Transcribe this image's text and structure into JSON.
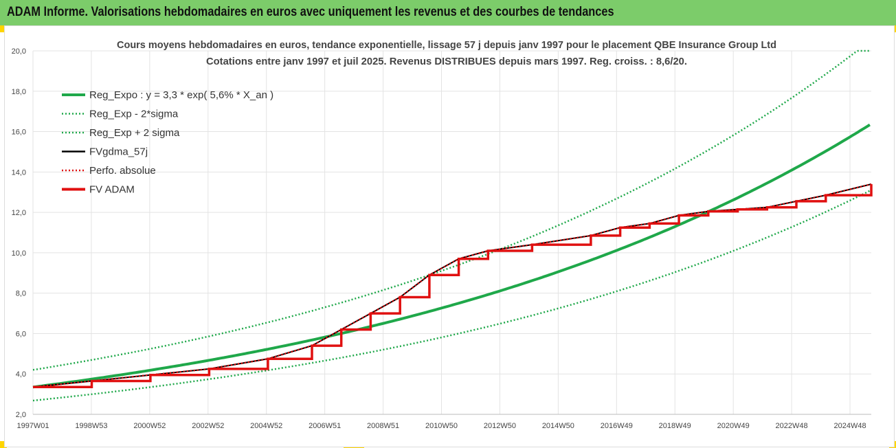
{
  "header": {
    "title": "ADAM Informe. Valorisations hebdomadaires en euros avec uniquement les revenus et des courbes de tendances"
  },
  "colors": {
    "header_bg": "#7ccc6a",
    "trend": "#1fa84a",
    "fvgdma": "#000000",
    "adam": "#e01010",
    "grid": "#e3e3e3"
  },
  "chart_data": {
    "type": "line",
    "title_line1": "Cours moyens hebdomadaires en euros, tendance exponentielle, lissage 57 j depuis janv 1997  pour le placement QBE Insurance Group Ltd",
    "title_line2": "Cotations entre janv 1997 et juil 2025. Revenus DISTRIBUES depuis mars 1997. Reg. croiss. : 8,6/20.",
    "xlabel": "",
    "ylabel": "",
    "x_tick_labels": [
      "1997W01",
      "1998W53",
      "2000W52",
      "2002W52",
      "2004W52",
      "2006W51",
      "2008W51",
      "2010W50",
      "2012W50",
      "2014W50",
      "2016W49",
      "2018W49",
      "2020W49",
      "2022W48",
      "2024W48"
    ],
    "x_range_years": [
      1997.0,
      2025.55
    ],
    "ylim": [
      2.0,
      20.0
    ],
    "y_tick_labels": [
      "2,0",
      "4,0",
      "6,0",
      "8,0",
      "10,0",
      "12,0",
      "14,0",
      "16,0",
      "18,0",
      "20,0"
    ],
    "grid": true,
    "legend_position": "top-left",
    "series": [
      {
        "name": "Reg_Expo : y = 3,3 * exp( 5,6% *  X_an )",
        "style": "solid-thick",
        "color": "#1fa84a",
        "model": {
          "a": 3.35,
          "b": 0.0556
        }
      },
      {
        "name": "Reg_Exp - 2*sigma",
        "style": "dotted",
        "color": "#1fa84a",
        "model": {
          "a": 2.68,
          "b": 0.0556
        }
      },
      {
        "name": "Reg_Exp + 2 sigma",
        "style": "dotted",
        "color": "#1fa84a",
        "model": {
          "a": 4.2,
          "b": 0.0556
        }
      },
      {
        "name": "FVgdma_57j",
        "style": "solid",
        "color": "#000000",
        "x": [
          1997.0,
          1999.0,
          2001.0,
          2003.0,
          2005.0,
          2006.5,
          2007.5,
          2008.5,
          2009.5,
          2010.5,
          2011.5,
          2012.5,
          2014.0,
          2016.0,
          2017.0,
          2018.0,
          2019.0,
          2020.0,
          2021.0,
          2022.0,
          2023.0,
          2024.0,
          2025.55
        ],
        "y": [
          3.35,
          3.65,
          3.95,
          4.25,
          4.75,
          5.4,
          6.2,
          7.0,
          7.8,
          8.9,
          9.7,
          10.1,
          10.4,
          10.85,
          11.25,
          11.45,
          11.85,
          12.05,
          12.15,
          12.25,
          12.55,
          12.85,
          13.4
        ]
      },
      {
        "name": "Perfo. absolue",
        "style": "dotted",
        "color": "#e01010",
        "x": [
          1997.0,
          1999.0,
          2001.0,
          2003.0,
          2005.0,
          2006.5,
          2007.5,
          2008.5,
          2009.5,
          2010.5,
          2011.5,
          2012.5,
          2014.0,
          2016.0,
          2017.0,
          2018.0,
          2019.0,
          2020.0,
          2021.0,
          2022.0,
          2023.0,
          2024.0,
          2025.55
        ],
        "y": [
          3.35,
          3.65,
          3.95,
          4.25,
          4.75,
          5.4,
          6.2,
          7.0,
          7.8,
          8.9,
          9.7,
          10.1,
          10.4,
          10.85,
          11.25,
          11.45,
          11.85,
          12.05,
          12.15,
          12.25,
          12.55,
          12.85,
          13.4
        ]
      },
      {
        "name": "FV ADAM",
        "style": "step-thick",
        "color": "#e01010",
        "x": [
          1997.0,
          1999.0,
          2001.0,
          2003.0,
          2005.0,
          2006.5,
          2007.5,
          2008.5,
          2009.5,
          2010.5,
          2011.5,
          2012.5,
          2014.0,
          2016.0,
          2017.0,
          2018.0,
          2019.0,
          2020.0,
          2021.0,
          2022.0,
          2023.0,
          2024.0,
          2025.55
        ],
        "y": [
          3.35,
          3.65,
          3.95,
          4.25,
          4.75,
          5.4,
          6.2,
          7.0,
          7.8,
          8.9,
          9.7,
          10.1,
          10.4,
          10.85,
          11.25,
          11.45,
          11.85,
          12.05,
          12.15,
          12.25,
          12.55,
          12.85,
          13.4
        ]
      }
    ]
  }
}
